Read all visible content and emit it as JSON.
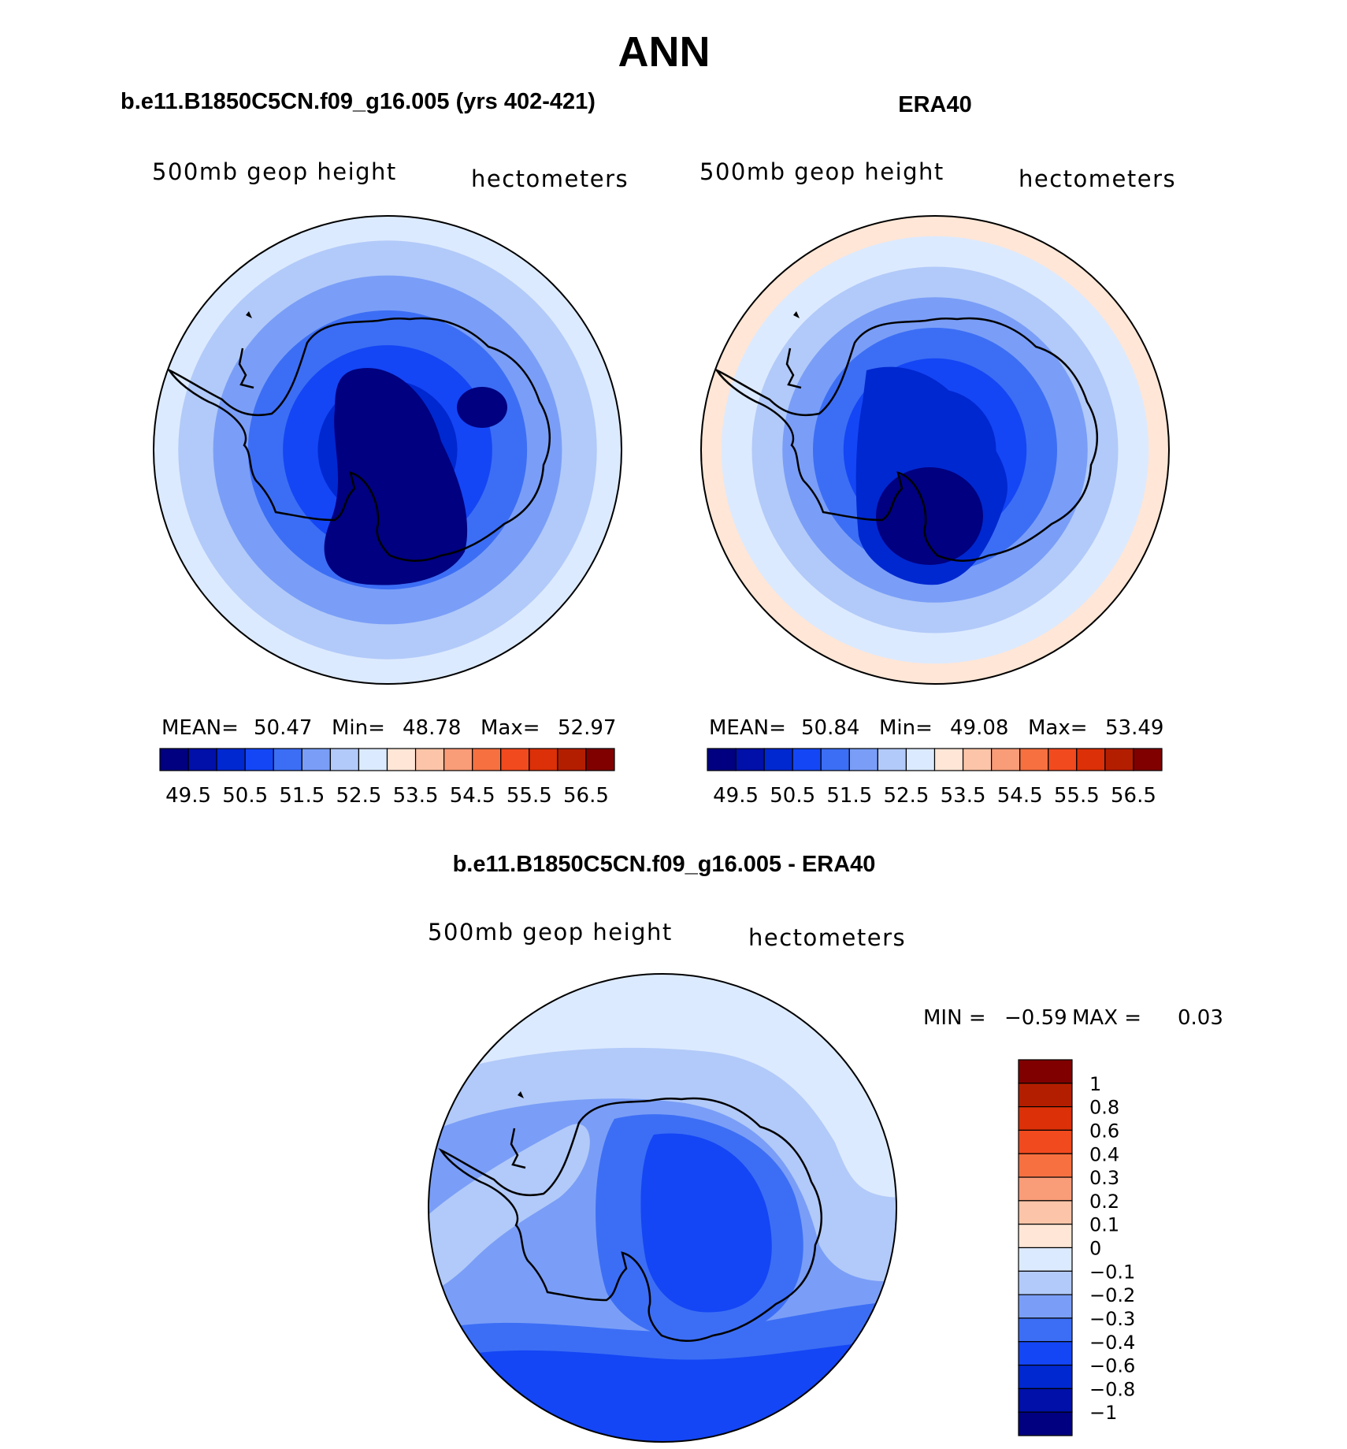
{
  "chart_data": {
    "type": "heatmap",
    "title": "ANN",
    "panels": [
      {
        "id": "model",
        "heading": "b.e11.B1850C5CN.f09_g16.005 (yrs 402-421)",
        "left_label": "500mb geop height",
        "right_label": "hectometers",
        "stats": {
          "mean_label": "MEAN=",
          "mean": "50.47",
          "min_label": "Min=",
          "min": "48.78",
          "max_label": "Max=",
          "max": "52.97"
        },
        "levels": [
          49.5,
          50.0,
          50.5,
          51.0,
          51.5,
          52.0,
          52.5,
          53.0,
          53.5,
          54.0,
          54.5,
          55.0,
          55.5,
          56.0,
          56.5
        ],
        "colorbar_ticks": [
          "49.5",
          "50.5",
          "51.5",
          "52.5",
          "53.5",
          "54.5",
          "55.5",
          "56.5"
        ]
      },
      {
        "id": "obs",
        "heading": "ERA40",
        "left_label": "500mb geop height",
        "right_label": "hectometers",
        "stats": {
          "mean_label": "MEAN=",
          "mean": "50.84",
          "min_label": "Min=",
          "min": "49.08",
          "max_label": "Max=",
          "max": "53.49"
        },
        "levels": [
          49.5,
          50.0,
          50.5,
          51.0,
          51.5,
          52.0,
          52.5,
          53.0,
          53.5,
          54.0,
          54.5,
          55.0,
          55.5,
          56.0,
          56.5
        ],
        "colorbar_ticks": [
          "49.5",
          "50.5",
          "51.5",
          "52.5",
          "53.5",
          "54.5",
          "55.5",
          "56.5"
        ]
      },
      {
        "id": "diff",
        "heading": "b.e11.B1850C5CN.f09_g16.005 - ERA40",
        "left_label": "500mb geop height",
        "right_label": "hectometers",
        "stats": {
          "min_label": "MIN =",
          "min": "−0.59",
          "max_label": "MAX =",
          "max": "0.03"
        },
        "levels": [
          -1,
          -0.8,
          -0.6,
          -0.4,
          -0.3,
          -0.2,
          -0.1,
          0,
          0.1,
          0.2,
          0.3,
          0.4,
          0.6,
          0.8,
          1
        ],
        "colorbar_ticks": [
          "1",
          "0.8",
          "0.6",
          "0.4",
          "0.3",
          "0.2",
          "0.1",
          "0",
          "−0.1",
          "−0.2",
          "−0.3",
          "−0.4",
          "−0.6",
          "−0.8",
          "−1"
        ]
      }
    ],
    "colormap": [
      "#000080",
      "#0010a8",
      "#0028d0",
      "#1446f5",
      "#3c6ef5",
      "#7a9ef7",
      "#b2caf9",
      "#dceaff",
      "#ffe6d6",
      "#fcc4a8",
      "#f99c78",
      "#f67040",
      "#f14a1e",
      "#db3008",
      "#b41e00",
      "#800000"
    ]
  }
}
